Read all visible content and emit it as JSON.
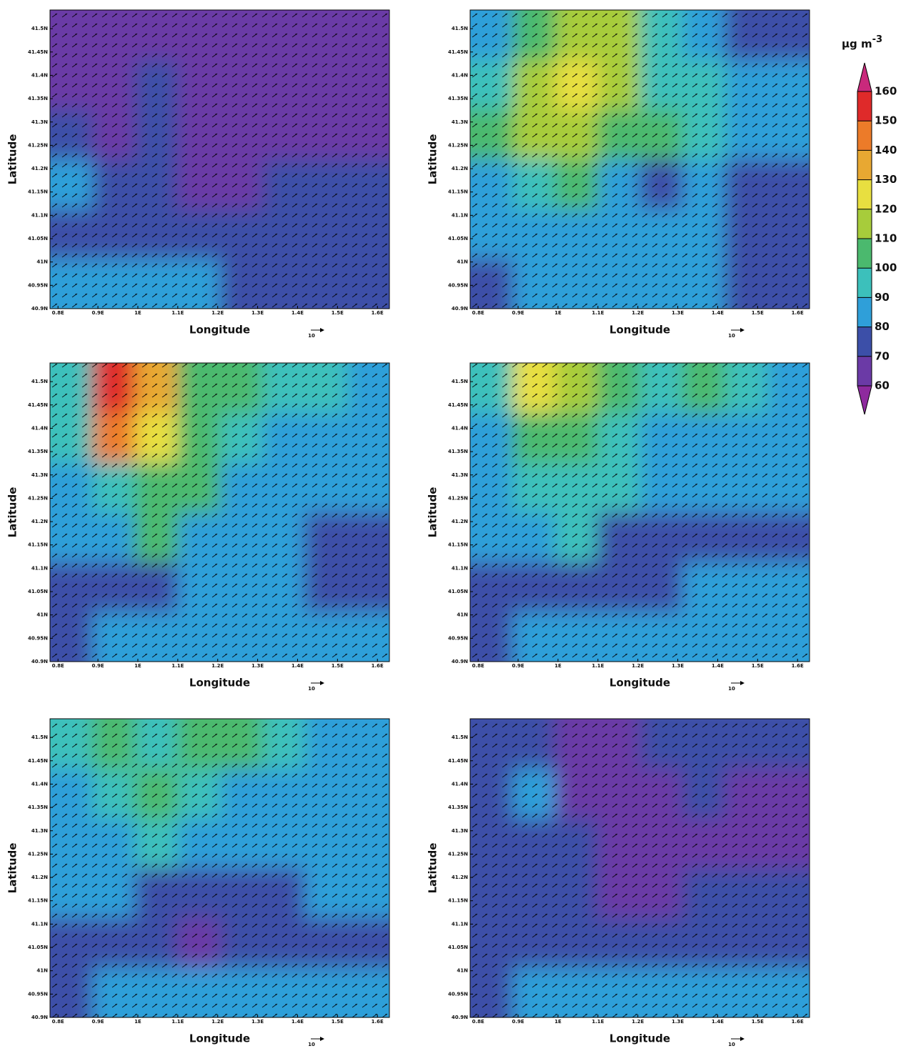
{
  "axes": {
    "xlabel": "Longitude",
    "ylabel": "Latitude",
    "vector_ref": "10",
    "xlim": [
      0.78,
      1.63
    ],
    "ylim": [
      40.9,
      41.54
    ],
    "xticks": [
      {
        "value": 0.8,
        "label": "0.8E"
      },
      {
        "value": 0.9,
        "label": "0.9E"
      },
      {
        "value": 1,
        "label": "1E"
      },
      {
        "value": 1.1,
        "label": "1.1E"
      },
      {
        "value": 1.2,
        "label": "1.2E"
      },
      {
        "value": 1.3,
        "label": "1.3E"
      },
      {
        "value": 1.4,
        "label": "1.4E"
      },
      {
        "value": 1.5,
        "label": "1.5E"
      },
      {
        "value": 1.6,
        "label": "1.6E"
      }
    ],
    "yticks": [
      {
        "value": 40.9,
        "label": "40.9N"
      },
      {
        "value": 40.95,
        "label": "40.95N"
      },
      {
        "value": 41,
        "label": "41N"
      },
      {
        "value": 41.05,
        "label": "41.05N"
      },
      {
        "value": 41.1,
        "label": "41.1N"
      },
      {
        "value": 41.15,
        "label": "41.15N"
      },
      {
        "value": 41.2,
        "label": "41.2N"
      },
      {
        "value": 41.25,
        "label": "41.25N"
      },
      {
        "value": 41.3,
        "label": "41.3N"
      },
      {
        "value": 41.35,
        "label": "41.35N"
      },
      {
        "value": 41.4,
        "label": "41.4N"
      },
      {
        "value": 41.45,
        "label": "41.45N"
      },
      {
        "value": 41.5,
        "label": "41.5N"
      }
    ]
  },
  "colorbar": {
    "unit": "µg m",
    "unit_exponent": "-3",
    "levels": [
      60,
      70,
      80,
      90,
      100,
      110,
      120,
      130,
      140,
      150,
      160
    ],
    "colors": [
      "#8e2a9e",
      "#6b3aa6",
      "#3c4fa8",
      "#2f9fd9",
      "#3cc0bb",
      "#4bb96e",
      "#a7cc3b",
      "#e8df40",
      "#e8a832",
      "#ec7b29",
      "#df2a2a",
      "#c9297c"
    ]
  },
  "panels": [
    {
      "field": [
        [
          65,
          65,
          65,
          62,
          62,
          65,
          62,
          62
        ],
        [
          65,
          62,
          72,
          65,
          62,
          65,
          62,
          62
        ],
        [
          72,
          65,
          72,
          62,
          62,
          65,
          62,
          65
        ],
        [
          85,
          72,
          72,
          62,
          62,
          72,
          72,
          72
        ],
        [
          75,
          72,
          72,
          72,
          72,
          72,
          72,
          72
        ],
        [
          85,
          85,
          85,
          85,
          72,
          72,
          72,
          72
        ]
      ]
    },
    {
      "field": [
        [
          85,
          100,
          115,
          110,
          95,
          85,
          75,
          75
        ],
        [
          95,
          115,
          125,
          115,
          95,
          92,
          88,
          85
        ],
        [
          100,
          110,
          115,
          105,
          100,
          90,
          85,
          85
        ],
        [
          85,
          95,
          100,
          88,
          75,
          85,
          75,
          75
        ],
        [
          85,
          85,
          85,
          85,
          85,
          85,
          75,
          75
        ],
        [
          75,
          85,
          85,
          85,
          85,
          85,
          75,
          75
        ]
      ]
    },
    {
      "field": [
        [
          95,
          155,
          135,
          105,
          100,
          95,
          95,
          85
        ],
        [
          90,
          145,
          125,
          105,
          90,
          85,
          85,
          85
        ],
        [
          85,
          95,
          105,
          100,
          85,
          85,
          85,
          85
        ],
        [
          85,
          85,
          100,
          85,
          85,
          85,
          75,
          75
        ],
        [
          75,
          75,
          75,
          85,
          85,
          85,
          75,
          75
        ],
        [
          75,
          85,
          85,
          85,
          85,
          85,
          85,
          85
        ]
      ]
    },
    {
      "field": [
        [
          95,
          125,
          110,
          105,
          95,
          100,
          95,
          85
        ],
        [
          85,
          105,
          105,
          95,
          85,
          85,
          85,
          85
        ],
        [
          85,
          90,
          95,
          95,
          85,
          85,
          85,
          85
        ],
        [
          85,
          85,
          95,
          75,
          75,
          75,
          75,
          75
        ],
        [
          75,
          75,
          75,
          75,
          75,
          85,
          85,
          85
        ],
        [
          75,
          85,
          85,
          85,
          85,
          85,
          85,
          85
        ]
      ]
    },
    {
      "field": [
        [
          95,
          100,
          95,
          100,
          105,
          92,
          85,
          85
        ],
        [
          85,
          95,
          100,
          95,
          85,
          85,
          85,
          85
        ],
        [
          85,
          85,
          95,
          85,
          85,
          85,
          85,
          85
        ],
        [
          85,
          85,
          75,
          75,
          75,
          75,
          85,
          85
        ],
        [
          75,
          75,
          75,
          65,
          75,
          75,
          75,
          75
        ],
        [
          75,
          85,
          85,
          85,
          85,
          85,
          85,
          85
        ]
      ]
    },
    {
      "field": [
        [
          75,
          75,
          65,
          65,
          75,
          75,
          75,
          75
        ],
        [
          75,
          88,
          65,
          65,
          65,
          75,
          65,
          65
        ],
        [
          75,
          75,
          72,
          65,
          65,
          65,
          62,
          65
        ],
        [
          75,
          72,
          75,
          65,
          65,
          75,
          72,
          72
        ],
        [
          75,
          75,
          75,
          72,
          72,
          72,
          75,
          75
        ],
        [
          75,
          85,
          85,
          85,
          85,
          85,
          85,
          85
        ]
      ]
    }
  ]
}
